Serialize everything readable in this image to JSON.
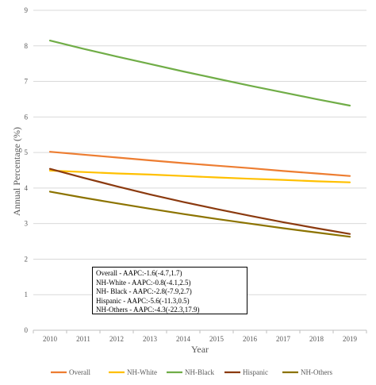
{
  "chart_data": {
    "type": "line",
    "xlabel": "Year",
    "ylabel": "Annual Percentage (%)",
    "x": [
      2010,
      2011,
      2012,
      2013,
      2014,
      2015,
      2016,
      2017,
      2018,
      2019
    ],
    "ylim": [
      0,
      9
    ],
    "yticks": [
      0,
      1,
      2,
      3,
      4,
      5,
      6,
      7,
      8,
      9
    ],
    "grid": "horizontal",
    "legend_position": "bottom",
    "series": [
      {
        "name": "Overall",
        "color": "#ED7D31",
        "values": [
          5.02,
          4.94,
          4.86,
          4.78,
          4.7,
          4.63,
          4.56,
          4.48,
          4.41,
          4.34
        ]
      },
      {
        "name": "NH-White",
        "color": "#FFC000",
        "values": [
          4.49,
          4.45,
          4.41,
          4.38,
          4.34,
          4.3,
          4.26,
          4.23,
          4.19,
          4.16
        ]
      },
      {
        "name": "NH-Black",
        "color": "#70AD47",
        "values": [
          8.15,
          7.92,
          7.7,
          7.49,
          7.28,
          7.08,
          6.88,
          6.69,
          6.5,
          6.32
        ]
      },
      {
        "name": "Hispanic",
        "color": "#8B3A0F",
        "values": [
          4.54,
          4.29,
          4.05,
          3.82,
          3.61,
          3.41,
          3.22,
          3.04,
          2.87,
          2.71
        ]
      },
      {
        "name": "NH-Others",
        "color": "#8C7300",
        "values": [
          3.9,
          3.73,
          3.57,
          3.42,
          3.27,
          3.13,
          3.0,
          2.87,
          2.75,
          2.63
        ]
      }
    ]
  },
  "annotation": {
    "lines": [
      "Overall - AAPC:-1.6(-4.7,1.7)",
      "NH-White - AAPC:-0.8(-4.1,2.5)",
      "NH- Black - AAPC:-2.8(-7.9,2.7)",
      "Hispanic - AAPC:-5.6(-11.3,0.5)",
      "NH-Others - AAPC:-4.3(-22.3,17.9)"
    ]
  }
}
